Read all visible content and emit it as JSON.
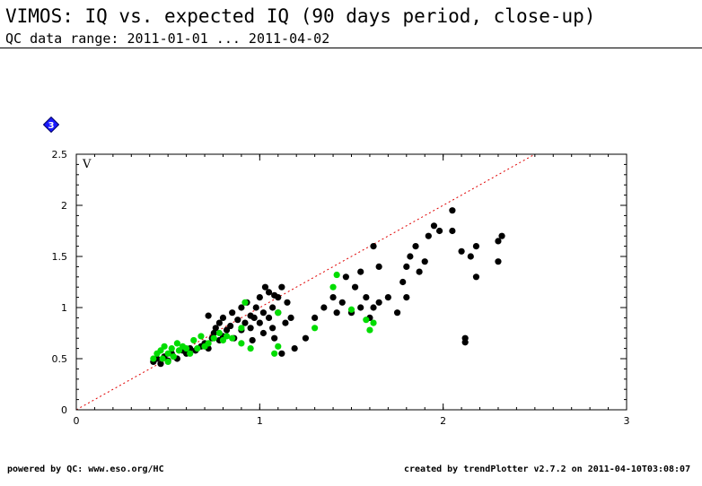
{
  "header": {
    "title": "VIMOS: IQ vs. expected IQ (90 days period, close-up)",
    "subtitle": "QC data range: 2011-01-01 ... 2011-04-02"
  },
  "badge": {
    "label": "3",
    "icon": "diamond-number-icon",
    "color": "#1a1aff"
  },
  "footer": {
    "left": "powered by QC: www.eso.org/HC",
    "right": "created by trendPlotter v2.7.2 on 2011-04-10T03:08:07"
  },
  "colors": {
    "series_black": "#000000",
    "series_green": "#00dd00",
    "reference_line": "#e00000"
  },
  "chart_data": {
    "type": "scatter",
    "panel_label": "V",
    "xlim": [
      0,
      3
    ],
    "ylim": [
      0,
      2.5
    ],
    "x_ticks": [
      "0",
      "1",
      "2",
      "3"
    ],
    "y_ticks": [
      "0",
      "0.5",
      "1",
      "1.5",
      "2",
      "2.5"
    ],
    "x_tick_values": [
      0,
      1,
      2,
      3
    ],
    "y_tick_values": [
      0,
      0.5,
      1,
      1.5,
      2,
      2.5
    ],
    "reference_line": {
      "style": "dotted",
      "slope": 1,
      "intercept": 0
    },
    "series": [
      {
        "color": "#000000",
        "points": [
          [
            0.42,
            0.47
          ],
          [
            0.44,
            0.5
          ],
          [
            0.46,
            0.45
          ],
          [
            0.48,
            0.52
          ],
          [
            0.5,
            0.48
          ],
          [
            0.52,
            0.55
          ],
          [
            0.55,
            0.5
          ],
          [
            0.58,
            0.58
          ],
          [
            0.6,
            0.55
          ],
          [
            0.62,
            0.6
          ],
          [
            0.65,
            0.58
          ],
          [
            0.68,
            0.62
          ],
          [
            0.7,
            0.65
          ],
          [
            0.72,
            0.6
          ],
          [
            0.74,
            0.7
          ],
          [
            0.75,
            0.75
          ],
          [
            0.76,
            0.8
          ],
          [
            0.78,
            0.68
          ],
          [
            0.78,
            0.85
          ],
          [
            0.8,
            0.72
          ],
          [
            0.8,
            0.9
          ],
          [
            0.82,
            0.78
          ],
          [
            0.84,
            0.82
          ],
          [
            0.85,
            0.95
          ],
          [
            0.86,
            0.7
          ],
          [
            0.88,
            0.88
          ],
          [
            0.9,
            0.78
          ],
          [
            0.9,
            1.0
          ],
          [
            0.92,
            0.85
          ],
          [
            0.93,
            1.05
          ],
          [
            0.95,
            0.8
          ],
          [
            0.95,
            0.92
          ],
          [
            0.97,
            0.9
          ],
          [
            0.98,
            1.0
          ],
          [
            1.0,
            0.85
          ],
          [
            1.0,
            1.1
          ],
          [
            1.02,
            0.75
          ],
          [
            1.02,
            0.95
          ],
          [
            1.03,
            1.2
          ],
          [
            1.05,
            0.9
          ],
          [
            1.05,
            1.15
          ],
          [
            1.07,
            0.8
          ],
          [
            1.07,
            1.0
          ],
          [
            1.08,
            0.7
          ],
          [
            1.1,
            0.95
          ],
          [
            1.1,
            1.1
          ],
          [
            1.12,
            0.55
          ],
          [
            1.12,
            1.2
          ],
          [
            1.14,
            0.85
          ],
          [
            1.15,
            1.05
          ],
          [
            1.17,
            0.9
          ],
          [
            1.19,
            0.6
          ],
          [
            1.25,
            0.7
          ],
          [
            1.3,
            0.9
          ],
          [
            1.35,
            1.0
          ],
          [
            1.4,
            1.1
          ],
          [
            1.42,
            0.95
          ],
          [
            1.45,
            1.05
          ],
          [
            1.47,
            1.3
          ],
          [
            1.5,
            0.95
          ],
          [
            1.52,
            1.2
          ],
          [
            1.55,
            1.0
          ],
          [
            1.55,
            1.35
          ],
          [
            1.58,
            1.1
          ],
          [
            1.6,
            0.9
          ],
          [
            1.62,
            1.0
          ],
          [
            1.62,
            1.6
          ],
          [
            1.65,
            1.05
          ],
          [
            1.65,
            1.4
          ],
          [
            1.7,
            1.1
          ],
          [
            1.75,
            0.95
          ],
          [
            1.78,
            1.25
          ],
          [
            1.8,
            1.1
          ],
          [
            1.8,
            1.4
          ],
          [
            1.82,
            1.5
          ],
          [
            1.85,
            1.6
          ],
          [
            1.87,
            1.35
          ],
          [
            1.9,
            1.45
          ],
          [
            1.92,
            1.7
          ],
          [
            1.95,
            1.8
          ],
          [
            1.98,
            1.75
          ],
          [
            2.05,
            1.75
          ],
          [
            2.05,
            1.95
          ],
          [
            2.1,
            1.55
          ],
          [
            2.12,
            0.7
          ],
          [
            2.12,
            0.66
          ],
          [
            2.15,
            1.5
          ],
          [
            2.18,
            1.6
          ],
          [
            2.18,
            1.3
          ],
          [
            2.3,
            1.65
          ],
          [
            2.3,
            1.45
          ],
          [
            2.32,
            1.7
          ],
          [
            0.72,
            0.92
          ],
          [
            0.96,
            0.68
          ],
          [
            1.08,
            1.12
          ]
        ]
      },
      {
        "color": "#00dd00",
        "points": [
          [
            0.42,
            0.5
          ],
          [
            0.44,
            0.55
          ],
          [
            0.46,
            0.58
          ],
          [
            0.47,
            0.5
          ],
          [
            0.48,
            0.62
          ],
          [
            0.5,
            0.55
          ],
          [
            0.5,
            0.47
          ],
          [
            0.52,
            0.6
          ],
          [
            0.53,
            0.52
          ],
          [
            0.55,
            0.65
          ],
          [
            0.56,
            0.58
          ],
          [
            0.58,
            0.62
          ],
          [
            0.6,
            0.6
          ],
          [
            0.62,
            0.55
          ],
          [
            0.64,
            0.68
          ],
          [
            0.66,
            0.6
          ],
          [
            0.68,
            0.72
          ],
          [
            0.7,
            0.62
          ],
          [
            0.72,
            0.65
          ],
          [
            0.75,
            0.7
          ],
          [
            0.78,
            0.75
          ],
          [
            0.8,
            0.68
          ],
          [
            0.82,
            0.72
          ],
          [
            0.85,
            0.7
          ],
          [
            0.9,
            0.65
          ],
          [
            0.92,
            1.05
          ],
          [
            0.95,
            0.6
          ],
          [
            1.08,
            0.55
          ],
          [
            1.1,
            0.62
          ],
          [
            1.1,
            0.95
          ],
          [
            1.3,
            0.8
          ],
          [
            1.4,
            1.2
          ],
          [
            1.42,
            1.32
          ],
          [
            1.5,
            0.98
          ],
          [
            1.58,
            0.88
          ],
          [
            1.6,
            0.78
          ],
          [
            1.62,
            0.85
          ],
          [
            0.9,
            0.8
          ]
        ]
      }
    ]
  }
}
